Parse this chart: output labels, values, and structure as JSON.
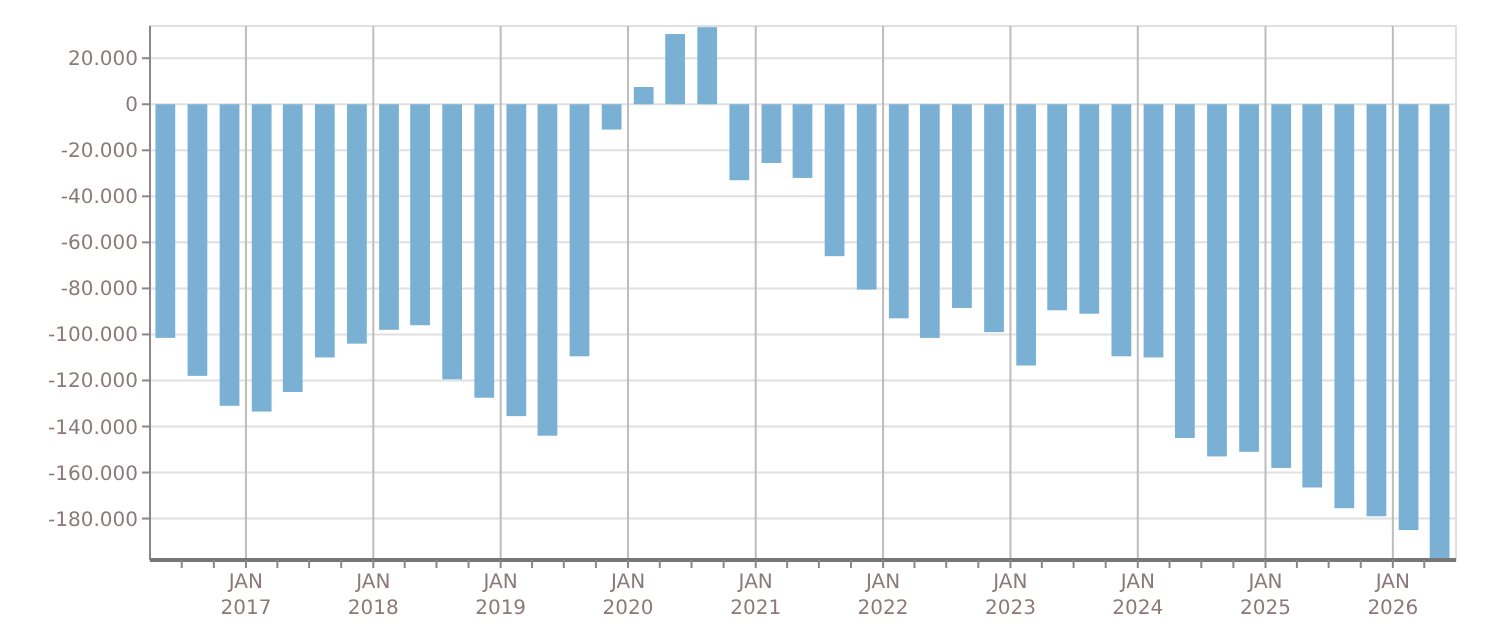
{
  "chart_data": {
    "type": "bar",
    "x": [
      "2016-05-15",
      "2016-08-15",
      "2016-11-15",
      "2017-02-15",
      "2017-05-15",
      "2017-08-15",
      "2017-11-15",
      "2018-02-15",
      "2018-05-15",
      "2018-08-15",
      "2018-11-15",
      "2019-02-15",
      "2019-05-15",
      "2019-08-15",
      "2019-11-15",
      "2020-02-15",
      "2020-05-15",
      "2020-08-15",
      "2020-11-15",
      "2021-02-15",
      "2021-05-15",
      "2021-08-15",
      "2021-11-15",
      "2022-02-15",
      "2022-05-15",
      "2022-08-15",
      "2022-11-15",
      "2023-02-15",
      "2023-05-15",
      "2023-08-15",
      "2023-11-15",
      "2024-02-15",
      "2024-05-15",
      "2024-08-15",
      "2024-11-15",
      "2025-02-15",
      "2025-05-15",
      "2025-08-15",
      "2025-11-15",
      "2026-02-15",
      "2026-05-15"
    ],
    "series": [
      {
        "color": "#79b0d3",
        "values": [
          -101500,
          -118000,
          -131000,
          -133500,
          -125000,
          -110000,
          -104000,
          -98000,
          -96000,
          -119500,
          -127500,
          -135500,
          -144000,
          -109500,
          -11000,
          7500,
          30500,
          33500,
          -33000,
          -25500,
          -32000,
          -66000,
          -80500,
          -93000,
          -101500,
          -88500,
          -99000,
          -113500,
          -89500,
          -91000,
          -109500,
          -110000,
          -145000,
          -153000,
          -151000,
          -158000,
          -166500,
          -175500,
          -179000,
          -185000,
          -198000
        ]
      }
    ],
    "xlim": [
      "2016-04",
      "2026-07"
    ],
    "xticks": [
      {
        "value": "2016-07",
        "label": null
      },
      {
        "value": "2016-10",
        "label": null
      },
      {
        "value": "2017-01",
        "label": "JAN\n2017"
      },
      {
        "value": "2017-04",
        "label": null
      },
      {
        "value": "2017-07",
        "label": null
      },
      {
        "value": "2017-10",
        "label": null
      },
      {
        "value": "2018-01",
        "label": "JAN\n2018"
      },
      {
        "value": "2018-04",
        "label": null
      },
      {
        "value": "2018-07",
        "label": null
      },
      {
        "value": "2018-10",
        "label": null
      },
      {
        "value": "2019-01",
        "label": "JAN\n2019"
      },
      {
        "value": "2019-04",
        "label": null
      },
      {
        "value": "2019-07",
        "label": null
      },
      {
        "value": "2019-10",
        "label": null
      },
      {
        "value": "2020-01",
        "label": "JAN\n2020"
      },
      {
        "value": "2020-04",
        "label": null
      },
      {
        "value": "2020-07",
        "label": null
      },
      {
        "value": "2020-10",
        "label": null
      },
      {
        "value": "2021-01",
        "label": "JAN\n2021"
      },
      {
        "value": "2021-04",
        "label": null
      },
      {
        "value": "2021-07",
        "label": null
      },
      {
        "value": "2021-10",
        "label": null
      },
      {
        "value": "2022-01",
        "label": "JAN\n2022"
      },
      {
        "value": "2022-04",
        "label": null
      },
      {
        "value": "2022-07",
        "label": null
      },
      {
        "value": "2022-10",
        "label": null
      },
      {
        "value": "2023-01",
        "label": "JAN\n2023"
      },
      {
        "value": "2023-04",
        "label": null
      },
      {
        "value": "2023-07",
        "label": null
      },
      {
        "value": "2023-10",
        "label": null
      },
      {
        "value": "2024-01",
        "label": "JAN\n2024"
      },
      {
        "value": "2024-04",
        "label": null
      },
      {
        "value": "2024-07",
        "label": null
      },
      {
        "value": "2024-10",
        "label": null
      },
      {
        "value": "2025-01",
        "label": "JAN\n2025"
      },
      {
        "value": "2025-04",
        "label": null
      },
      {
        "value": "2025-07",
        "label": null
      },
      {
        "value": "2025-10",
        "label": null
      },
      {
        "value": "2026-01",
        "label": "JAN\n2026"
      },
      {
        "value": "2026-04",
        "label": null
      }
    ],
    "ylim": [
      -198000,
      34000
    ],
    "yticks": [
      {
        "value": 20000,
        "label": "20.000"
      },
      0,
      {
        "value": -20000,
        "label": "-20.000"
      },
      {
        "value": -40000,
        "label": "-40.000"
      },
      {
        "value": -60000,
        "label": "-60.000"
      },
      {
        "value": -80000,
        "label": "-80.000"
      },
      {
        "value": -100000,
        "label": "-100.000"
      },
      {
        "value": -120000,
        "label": "-120.000"
      },
      {
        "value": -140000,
        "label": "-140.000"
      },
      {
        "value": -160000,
        "label": "-160.000"
      },
      {
        "value": -180000,
        "label": "-180.000"
      }
    ],
    "grid": true
  }
}
